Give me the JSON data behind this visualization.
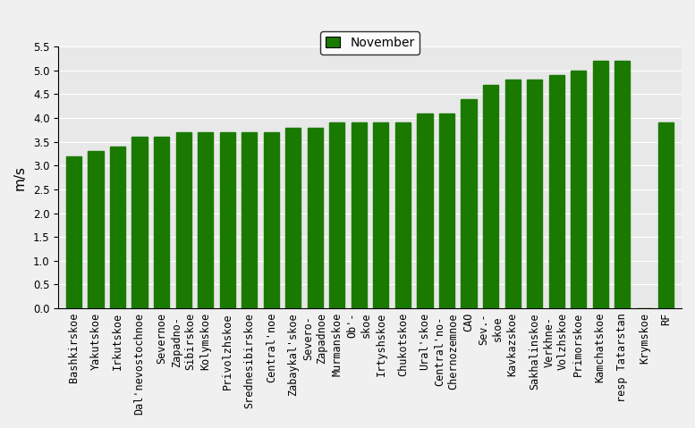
{
  "categories": [
    "Bashkirskoe",
    "Yakutskoe",
    "Irkutskoe",
    "Dal'nevostochnoe",
    "Severnoe",
    "Zapadno-\nSibirskoe",
    "Kolymskoe",
    "Privolzhskoe",
    "Srednesibirskoe",
    "Central'noe",
    "Zabaykal'skoe",
    "Severo-\nZapadnoe",
    "Murmanskoe",
    "Ob'-\nskoe",
    "Irtyshskoe",
    "Chukotskoe",
    "Ural'skoe",
    "Central'no-\nChernozemnoe",
    "CAO",
    "Sev.-\nskoe",
    "Kavkazskoe",
    "Sakhalinskoe",
    "Verkhne-\nVolzhskoe",
    "Primorskoe",
    "Kamchatskoe",
    "resp Tatarstan",
    "Krymskoe",
    "RF"
  ],
  "values": [
    3.2,
    3.3,
    3.4,
    3.6,
    3.6,
    3.7,
    3.7,
    3.7,
    3.7,
    3.7,
    3.8,
    3.8,
    3.9,
    3.9,
    3.9,
    3.9,
    4.1,
    4.1,
    4.4,
    4.7,
    4.8,
    4.8,
    4.9,
    5.0,
    5.2,
    5.2,
    0.0,
    3.9
  ],
  "bar_color": "#1a7a00",
  "ylabel": "m/s",
  "ylim_min": 0,
  "ylim_max": 5.5,
  "yticks": [
    0,
    0.5,
    1.0,
    1.5,
    2.0,
    2.5,
    3.0,
    3.5,
    4.0,
    4.5,
    5.0,
    5.5
  ],
  "legend_label": "November",
  "legend_color": "#1a7a00",
  "bg_color": "#e8e8e8",
  "title_fontsize": 10,
  "label_fontsize": 8.5,
  "ylabel_fontsize": 11
}
